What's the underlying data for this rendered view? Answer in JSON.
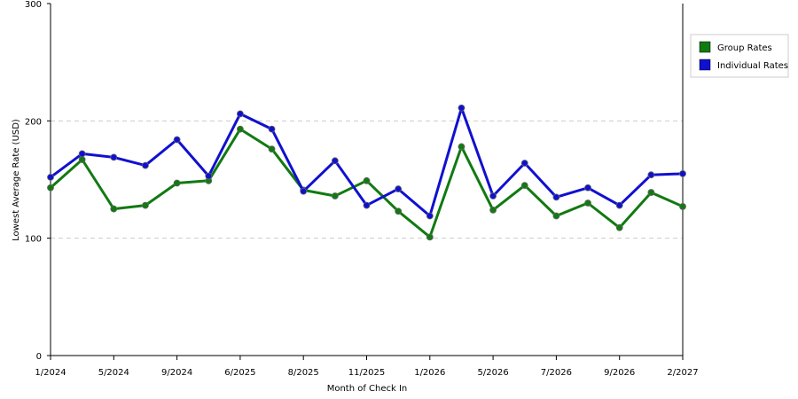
{
  "chart_data": {
    "type": "line",
    "xlabel": "Month of Check In",
    "ylabel": "Lowest Average Rate (USD)",
    "ylim": [
      0,
      300
    ],
    "yticks": [
      0,
      100,
      200,
      300
    ],
    "grid": "horizontal dashed",
    "legend_position": "right",
    "point_count": 21,
    "x_tick_labels": [
      {
        "index": 0,
        "label": "1/2024"
      },
      {
        "index": 2,
        "label": "5/2024"
      },
      {
        "index": 4,
        "label": "9/2024"
      },
      {
        "index": 6,
        "label": "6/2025"
      },
      {
        "index": 8,
        "label": "8/2025"
      },
      {
        "index": 10,
        "label": "11/2025"
      },
      {
        "index": 12,
        "label": "1/2026"
      },
      {
        "index": 14,
        "label": "5/2026"
      },
      {
        "index": 16,
        "label": "7/2026"
      },
      {
        "index": 18,
        "label": "9/2026"
      },
      {
        "index": 20,
        "label": "2/2027"
      }
    ],
    "series": [
      {
        "name": "Group Rates",
        "color": "#117a11",
        "values": [
          143,
          167,
          125,
          128,
          147,
          149,
          193,
          176,
          141,
          136,
          149,
          123,
          101,
          178,
          124,
          145,
          119,
          130,
          109,
          139,
          127
        ]
      },
      {
        "name": "Individual Rates",
        "color": "#1010d0",
        "values": [
          152,
          172,
          169,
          162,
          184,
          153,
          206,
          193,
          140,
          166,
          128,
          142,
          119,
          211,
          136,
          164,
          135,
          143,
          128,
          154,
          155
        ]
      }
    ]
  }
}
